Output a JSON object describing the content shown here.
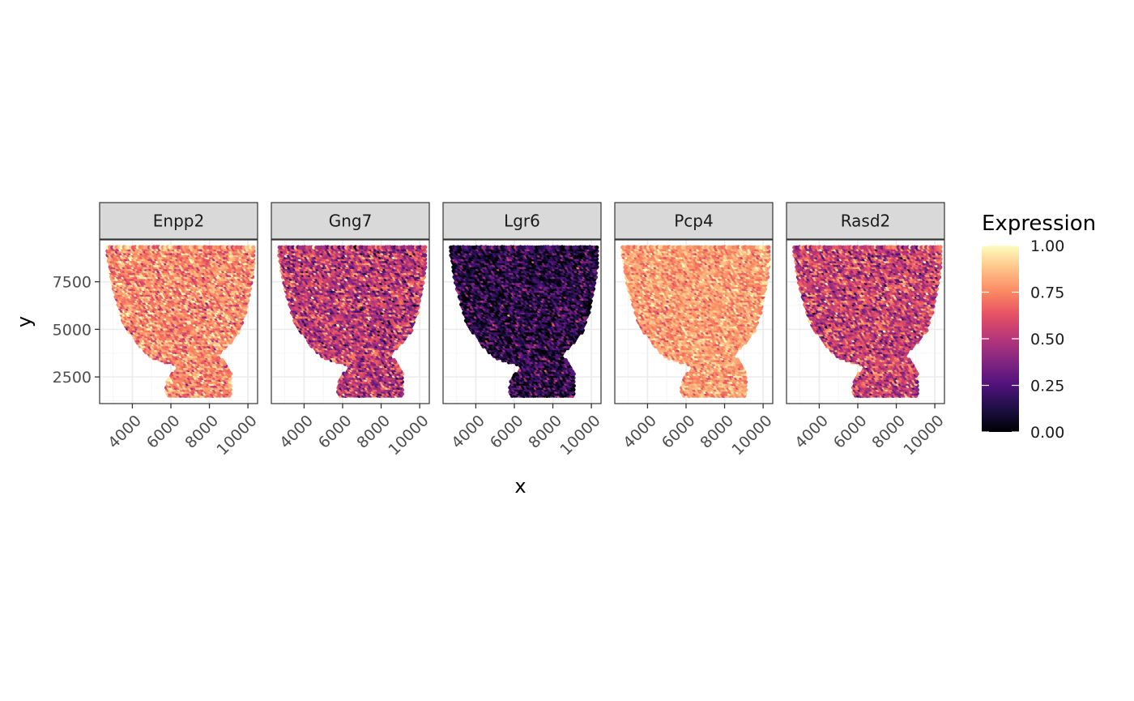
{
  "chart_data": {
    "type": "scatter",
    "facet_variable": "gene",
    "panels": [
      {
        "name": "Enpp2",
        "mean": 0.76,
        "spread": 0.12
      },
      {
        "name": "Gng7",
        "mean": 0.52,
        "spread": 0.17
      },
      {
        "name": "Lgr6",
        "mean": 0.14,
        "spread": 0.16
      },
      {
        "name": "Pcp4",
        "mean": 0.8,
        "spread": 0.09
      },
      {
        "name": "Rasd2",
        "mean": 0.56,
        "spread": 0.16
      }
    ],
    "xlabel": "x",
    "ylabel": "y",
    "xlim": [
      2300,
      10500
    ],
    "ylim": [
      1100,
      9700
    ],
    "x_ticks": [
      4000,
      6000,
      8000,
      10000
    ],
    "y_ticks": [
      2500,
      5000,
      7500
    ],
    "x_tick_labels": [
      "4000",
      "6000",
      "8000",
      "10000"
    ],
    "y_tick_labels": [
      "2500",
      "5000",
      "7500"
    ],
    "tissue_outline": [
      [
        2700,
        9350
      ],
      [
        10300,
        9350
      ],
      [
        10350,
        8900
      ],
      [
        10200,
        7500
      ],
      [
        9900,
        6000
      ],
      [
        9550,
        4900
      ],
      [
        9100,
        4300
      ],
      [
        8400,
        3600
      ],
      [
        8800,
        3300
      ],
      [
        9100,
        2800
      ],
      [
        9100,
        1500
      ],
      [
        5800,
        1500
      ],
      [
        5750,
        1700
      ],
      [
        5800,
        2400
      ],
      [
        6400,
        3000
      ],
      [
        6150,
        3150
      ],
      [
        5000,
        3500
      ],
      [
        4200,
        4300
      ],
      [
        3500,
        5400
      ],
      [
        3100,
        6800
      ],
      [
        2900,
        7600
      ],
      [
        2700,
        8900
      ]
    ],
    "spot_spacing": 120,
    "grid": true,
    "legend": {
      "title": "Expression",
      "position": "right",
      "ticks": [
        0.0,
        0.25,
        0.5,
        0.75,
        1.0
      ],
      "tick_labels": [
        "0.00",
        "0.25",
        "0.50",
        "0.75",
        "1.00"
      ],
      "colormap": "magma",
      "colors": [
        "#000004",
        "#1c1044",
        "#4f127b",
        "#812581",
        "#b5367a",
        "#e55064",
        "#fb8761",
        "#fec287",
        "#fcfdbf"
      ]
    },
    "colors": {
      "strip_fill": "#d9d9d9",
      "strip_border": "#333333",
      "panel_border": "#333333",
      "grid_major": "#ebebeb",
      "grid_minor": "#f5f5f5",
      "tick": "#333333"
    }
  }
}
